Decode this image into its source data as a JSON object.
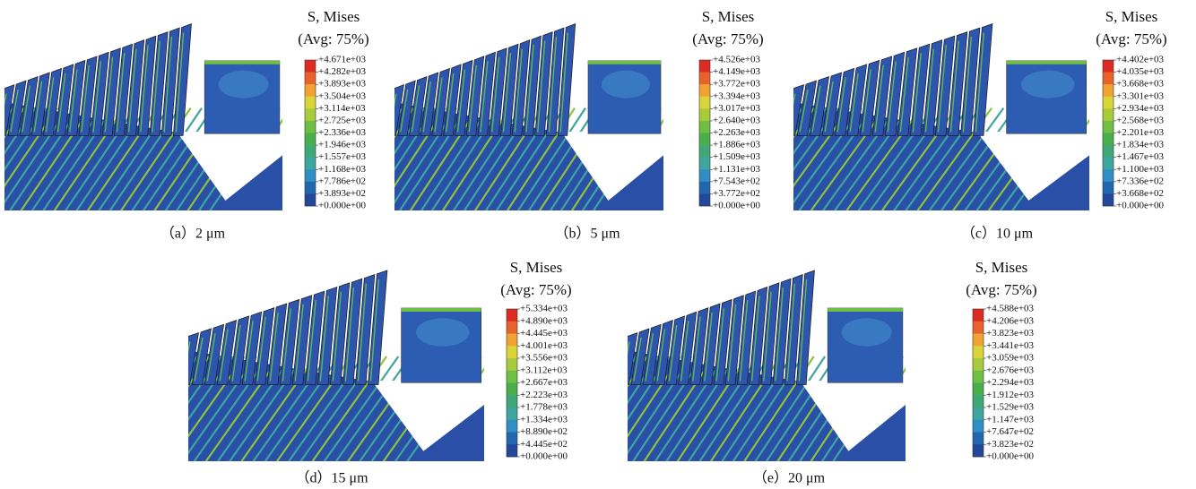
{
  "colorbar_colors": [
    "#dc2b23",
    "#e8632b",
    "#f0a233",
    "#d9d43a",
    "#a8cb3c",
    "#6fbf44",
    "#4aaf4b",
    "#3fa877",
    "#3fa59f",
    "#2f8ec3",
    "#2266b0",
    "#23479b"
  ],
  "panels": [
    {
      "title": "S, Mises",
      "subtitle": "(Avg: 75%)",
      "caption": "（a）2 μm",
      "legend": [
        "+4.671e+03",
        "+4.282e+03",
        "+3.893e+03",
        "+3.504e+03",
        "+3.114e+03",
        "+2.725e+03",
        "+2.336e+03",
        "+1.946e+03",
        "+1.557e+03",
        "+1.168e+03",
        "+7.786e+02",
        "+3.893e+02",
        "+0.000e+00"
      ]
    },
    {
      "title": "S, Mises",
      "subtitle": "(Avg: 75%)",
      "caption": "（b）5 μm",
      "legend": [
        "+4.526e+03",
        "+4.149e+03",
        "+3.772e+03",
        "+3.394e+03",
        "+3.017e+03",
        "+2.640e+03",
        "+2.263e+03",
        "+1.886e+03",
        "+1.509e+03",
        "+1.131e+03",
        "+7.543e+02",
        "+3.772e+02",
        "+0.000e+00"
      ]
    },
    {
      "title": "S, Mises",
      "subtitle": "(Avg: 75%)",
      "caption": "（c）10 μm",
      "legend": [
        "+4.402e+03",
        "+4.035e+03",
        "+3.668e+03",
        "+3.301e+03",
        "+2.934e+03",
        "+2.568e+03",
        "+2.201e+03",
        "+1.834e+03",
        "+1.467e+03",
        "+1.100e+03",
        "+7.336e+02",
        "+3.668e+02",
        "+0.000e+00"
      ]
    },
    {
      "title": "S, Mises",
      "subtitle": "(Avg: 75%)",
      "caption": "（d）15 μm",
      "legend": [
        "+5.334e+03",
        "+4.890e+03",
        "+4.445e+03",
        "+4.001e+03",
        "+3.556e+03",
        "+3.112e+03",
        "+2.667e+03",
        "+2.223e+03",
        "+1.778e+03",
        "+1.334e+03",
        "+8.890e+02",
        "+4.445e+02",
        "+0.000e+00"
      ]
    },
    {
      "title": "S, Mises",
      "subtitle": "(Avg: 75%)",
      "caption": "（e）20 μm",
      "legend": [
        "+4.588e+03",
        "+4.206e+03",
        "+3.823e+03",
        "+3.441e+03",
        "+3.059e+03",
        "+2.676e+03",
        "+2.294e+03",
        "+1.912e+03",
        "+1.529e+03",
        "+1.147e+03",
        "+7.647e+02",
        "+3.823e+02",
        "+0.000e+00"
      ]
    }
  ]
}
